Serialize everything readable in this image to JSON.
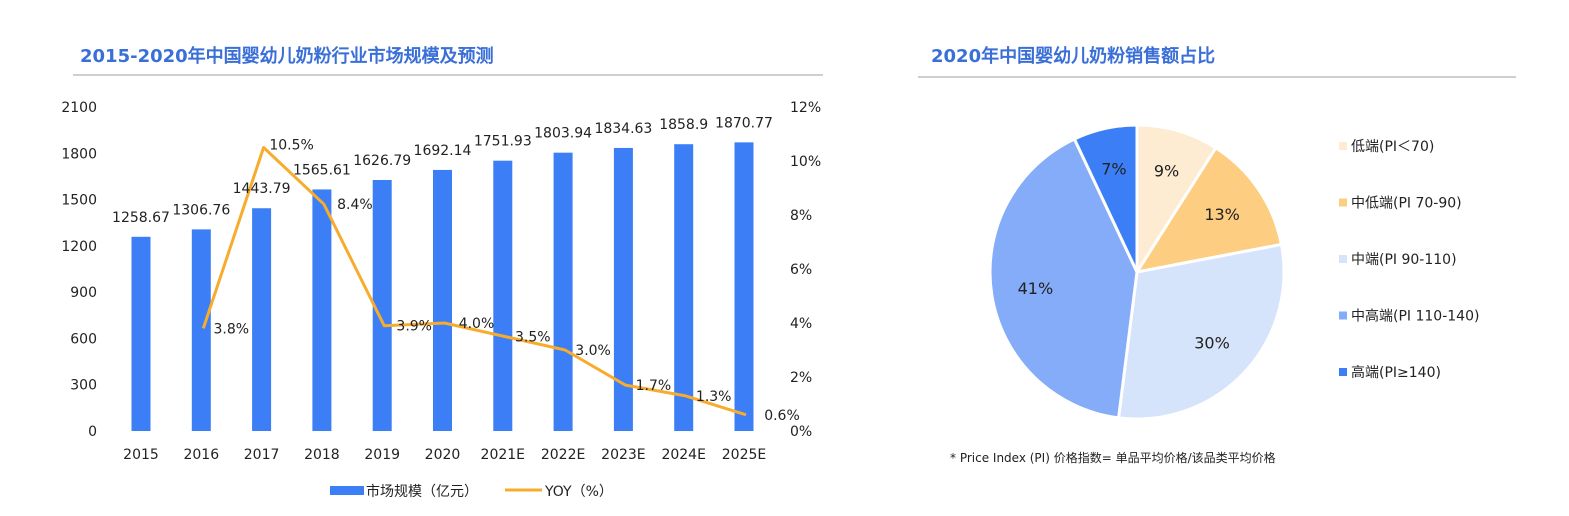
{
  "chart_data": [
    {
      "type": "bar",
      "title": "2015-2020年中国婴幼儿奶粉行业市场规模及预测",
      "categories": [
        "2015",
        "2016",
        "2017",
        "2018",
        "2019",
        "2020",
        "2021E",
        "2022E",
        "2023E",
        "2024E",
        "2025E"
      ],
      "series": [
        {
          "name": "市场规模（亿元）",
          "type": "bar",
          "axis": "left",
          "color": "#3b7ef5",
          "values": [
            1258.67,
            1306.76,
            1443.79,
            1565.61,
            1626.79,
            1692.14,
            1751.93,
            1803.94,
            1834.63,
            1858.9,
            1870.77
          ],
          "labels": [
            "1258.67",
            "1306.76",
            "1443.79",
            "1565.61",
            "1626.79",
            "1692.14",
            "1751.93",
            "1803.94",
            "1834.63",
            "1858.9",
            "1870.77"
          ]
        },
        {
          "name": "YOY（%）",
          "type": "line",
          "axis": "right",
          "color": "#f7ac2d",
          "values": [
            null,
            3.8,
            10.5,
            8.4,
            3.9,
            4.0,
            3.5,
            3.0,
            1.7,
            1.3,
            0.6
          ],
          "labels": [
            "",
            "3.8%",
            "10.5%",
            "8.4%",
            "3.9%",
            "4.0%",
            "3.5%",
            "3.0%",
            "1.7%",
            "1.3%",
            "0.6%"
          ]
        }
      ],
      "y_left": {
        "range": [
          0,
          2100
        ],
        "ticks": [
          "0",
          "300",
          "600",
          "900",
          "1200",
          "1500",
          "1800",
          "2100"
        ]
      },
      "y_right": {
        "range": [
          0,
          12
        ],
        "ticks": [
          "0%",
          "2%",
          "4%",
          "6%",
          "8%",
          "10%",
          "12%"
        ]
      },
      "legend": [
        "市场规模（亿元）",
        "YOY（%）"
      ],
      "grid": false
    },
    {
      "type": "pie",
      "title": "2020年中国婴幼儿奶粉销售额占比",
      "slices": [
        {
          "label": "低端(PI＜70)",
          "value": 9,
          "display": "9%",
          "color": "#fdebd2"
        },
        {
          "label": "中低端(PI 70-90)",
          "value": 13,
          "display": "13%",
          "color": "#fdcd81"
        },
        {
          "label": "中端(PI 90-110)",
          "value": 30,
          "display": "30%",
          "color": "#d5e3fb"
        },
        {
          "label": "中高端(PI 110-140)",
          "value": 41,
          "display": "41%",
          "color": "#85acf8"
        },
        {
          "label": "高端(PI≥140)",
          "value": 7,
          "display": "7%",
          "color": "#3b7ef5"
        }
      ],
      "legend_position": "right",
      "footnote": "* Price Index (PI) 价格指数= 单品平均价格/该品类平均价格"
    }
  ]
}
